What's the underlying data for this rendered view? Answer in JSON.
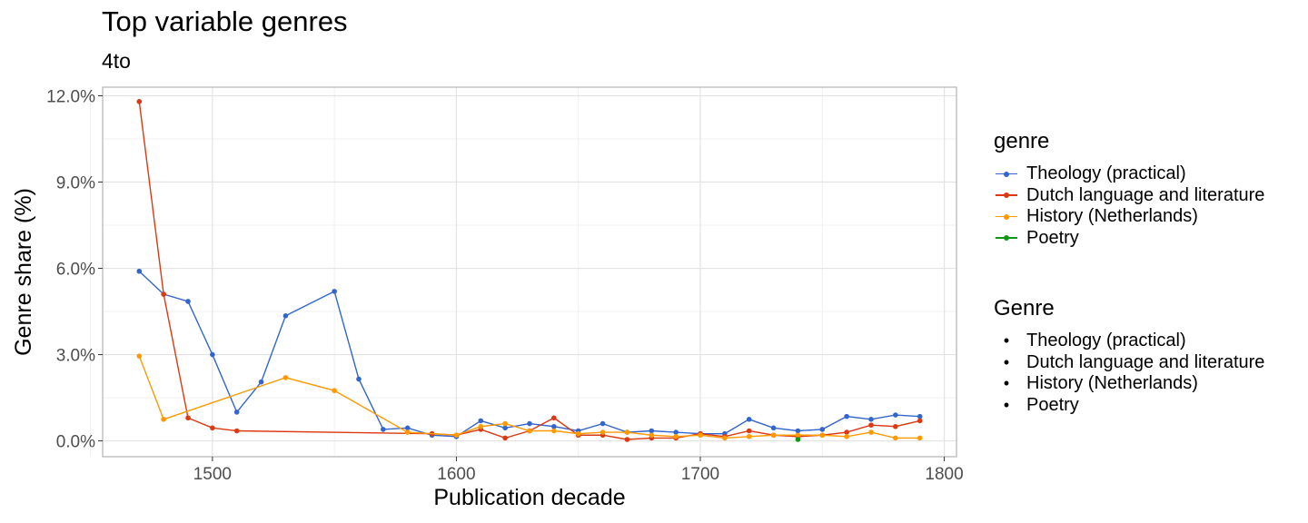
{
  "chart_data": {
    "type": "line",
    "title": "Top variable genres",
    "subtitle": "4to",
    "xlabel": "Publication decade",
    "ylabel": "Genre share (%)",
    "xlim": [
      1455,
      1805
    ],
    "ylim": [
      -0.55,
      12.3
    ],
    "x_ticks": [
      1500,
      1600,
      1700,
      1800
    ],
    "y_ticks": [
      0,
      3,
      6,
      9,
      12
    ],
    "y_tick_labels": [
      "0.0%",
      "3.0%",
      "6.0%",
      "9.0%",
      "12.0%"
    ],
    "grid": true,
    "legend_position": "right",
    "legends": [
      {
        "title": "genre",
        "entries": [
          "Theology (practical)",
          "Dutch language and literature",
          "History (Netherlands)",
          "Poetry"
        ]
      },
      {
        "title": "Genre",
        "entries": [
          "Theology (practical)",
          "Dutch language and literature",
          "History (Netherlands)",
          "Poetry"
        ]
      }
    ],
    "series": [
      {
        "name": "Theology (practical)",
        "color": "#3366cc",
        "x": [
          1470,
          1480,
          1490,
          1500,
          1510,
          1520,
          1530,
          1550,
          1560,
          1570,
          1580,
          1590,
          1600,
          1610,
          1620,
          1630,
          1640,
          1650,
          1660,
          1670,
          1680,
          1690,
          1700,
          1710,
          1720,
          1730,
          1740,
          1750,
          1760,
          1770,
          1780,
          1790
        ],
        "y": [
          5.9,
          5.1,
          4.85,
          3.0,
          1.0,
          2.05,
          4.35,
          5.2,
          2.15,
          0.4,
          0.45,
          0.2,
          0.15,
          0.7,
          0.45,
          0.6,
          0.5,
          0.35,
          0.6,
          0.3,
          0.35,
          0.3,
          0.25,
          0.25,
          0.75,
          0.45,
          0.35,
          0.4,
          0.85,
          0.75,
          0.9,
          0.85
        ]
      },
      {
        "name": "Dutch language and literature",
        "color": "#dc3912",
        "x": [
          1470,
          1480,
          1490,
          1500,
          1510,
          1590,
          1600,
          1610,
          1620,
          1630,
          1640,
          1650,
          1660,
          1670,
          1680,
          1690,
          1700,
          1710,
          1720,
          1730,
          1740,
          1750,
          1760,
          1770,
          1780,
          1790
        ],
        "y": [
          11.8,
          5.1,
          0.8,
          0.45,
          0.35,
          0.25,
          0.2,
          0.4,
          0.1,
          0.35,
          0.8,
          0.2,
          0.2,
          0.05,
          0.1,
          0.1,
          0.25,
          0.15,
          0.35,
          0.2,
          0.15,
          0.2,
          0.3,
          0.55,
          0.5,
          0.7
        ]
      },
      {
        "name": "History (Netherlands)",
        "color": "#ff9900",
        "x": [
          1470,
          1480,
          1530,
          1550,
          1580,
          1600,
          1610,
          1620,
          1630,
          1640,
          1650,
          1660,
          1670,
          1680,
          1690,
          1700,
          1710,
          1720,
          1730,
          1740,
          1750,
          1760,
          1770,
          1780,
          1790
        ],
        "y": [
          2.95,
          0.75,
          2.2,
          1.75,
          0.3,
          0.2,
          0.5,
          0.6,
          0.35,
          0.35,
          0.25,
          0.3,
          0.3,
          0.2,
          0.15,
          0.2,
          0.1,
          0.15,
          0.2,
          0.2,
          0.2,
          0.15,
          0.3,
          0.1,
          0.1
        ]
      },
      {
        "name": "Poetry",
        "color": "#109618",
        "x": [
          1740
        ],
        "y": [
          0.05
        ]
      }
    ]
  }
}
